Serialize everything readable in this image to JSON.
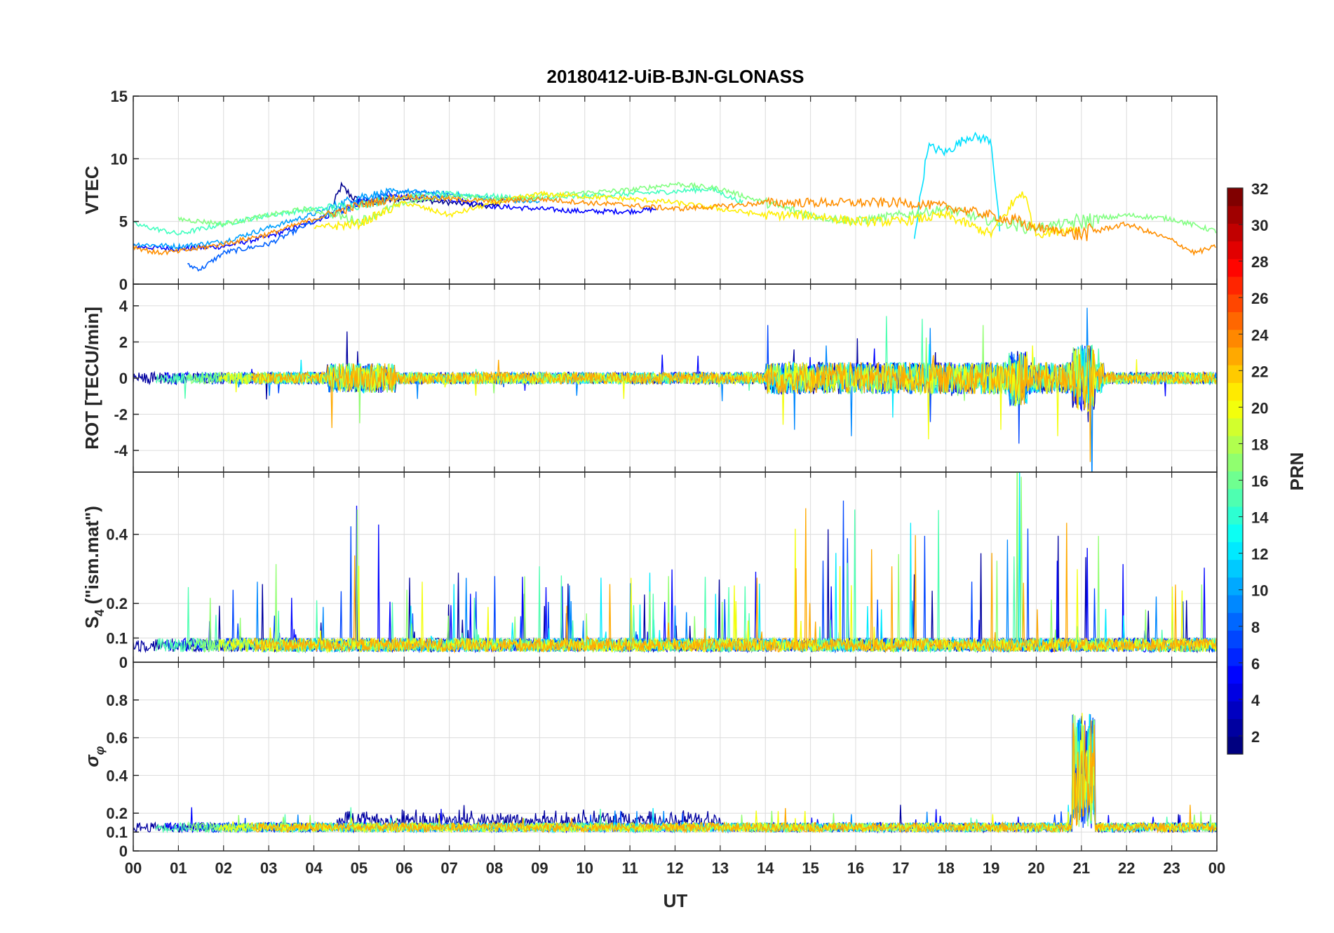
{
  "chart_data": [
    {
      "type": "line",
      "title": "20180412-UiB-BJN-GLONASS",
      "xlabel": "UT",
      "xlim": [
        0,
        24
      ],
      "x_tick_labels": [
        "00",
        "01",
        "02",
        "03",
        "04",
        "05",
        "06",
        "07",
        "08",
        "09",
        "10",
        "11",
        "12",
        "13",
        "14",
        "15",
        "16",
        "17",
        "18",
        "19",
        "20",
        "21",
        "22",
        "23",
        "00"
      ],
      "panels": [
        {
          "ylabel": "VTEC",
          "ylim": [
            0,
            15
          ],
          "yticks": [
            0,
            5,
            10,
            15
          ],
          "ytick_labels": [
            "0",
            "5",
            "10",
            "15"
          ],
          "series": [
            {
              "prn": 2,
              "color": "#00008f",
              "x": [
                4.4,
                4.6,
                5.0,
                6.0,
                7.0,
                8.0,
                8.3
              ],
              "y": [
                6.0,
                7.8,
                6.5,
                6.8,
                6.5,
                6.2,
                7.0
              ]
            },
            {
              "prn": 5,
              "color": "#0000ff",
              "x": [
                0.0,
                1.0,
                2.0,
                3.0,
                4.0,
                5.0,
                6.0,
                7.0,
                8.0,
                9.0,
                10.0,
                11.0,
                11.6
              ],
              "y": [
                3.0,
                2.8,
                3.0,
                3.8,
                5.0,
                6.5,
                7.0,
                6.8,
                6.2,
                6.0,
                5.8,
                5.8,
                6.0
              ]
            },
            {
              "prn": 7,
              "color": "#0060ff",
              "x": [
                1.2,
                1.5,
                2.0,
                3.0,
                4.0,
                5.0,
                6.0,
                7.0
              ],
              "y": [
                1.5,
                1.2,
                2.5,
                3.2,
                5.0,
                6.5,
                7.4,
                7.0
              ]
            },
            {
              "prn": 9,
              "color": "#00a0ff",
              "x": [
                0.0,
                1.0,
                2.0,
                3.0,
                4.0,
                5.0,
                6.0,
                7.0,
                8.0,
                9.0
              ],
              "y": [
                3.2,
                3.0,
                3.4,
                4.5,
                5.6,
                7.0,
                7.4,
                7.2,
                6.8,
                6.5
              ]
            },
            {
              "prn": 12,
              "color": "#00e0ff",
              "x": [
                17.3,
                17.6,
                18.0,
                18.5,
                19.0,
                19.2
              ],
              "y": [
                3.8,
                11.0,
                10.5,
                11.8,
                11.5,
                4.0
              ]
            },
            {
              "prn": 15,
              "color": "#40ffbf",
              "x": [
                0.0,
                1.0,
                2.0,
                3.0,
                4.0,
                5.0,
                6.0,
                7.0,
                8.0,
                9.0,
                10.0,
                11.0,
                12.0,
                12.8,
                13.5
              ],
              "y": [
                4.8,
                4.0,
                4.8,
                5.5,
                6.0,
                6.3,
                7.0,
                7.2,
                7.0,
                6.8,
                7.0,
                7.2,
                7.4,
                7.6,
                6.5
              ]
            },
            {
              "prn": 17,
              "color": "#80ff80",
              "x": [
                1.0,
                2.0,
                3.0,
                3.8,
                4.5,
                5.0,
                6.0,
                7.0,
                8.0,
                9.0,
                10.0,
                11.0,
                12.0,
                13.0,
                14.0,
                15.0,
                16.0,
                17.0,
                18.0,
                19.0,
                20.0,
                21.0,
                22.0,
                23.0,
                24.0
              ],
              "y": [
                5.2,
                4.8,
                5.5,
                6.0,
                5.5,
                5.0,
                6.5,
                7.0,
                6.8,
                7.0,
                7.3,
                7.5,
                8.0,
                7.6,
                6.5,
                5.5,
                5.0,
                5.5,
                6.0,
                5.0,
                4.5,
                5.0,
                5.5,
                5.2,
                4.2
              ]
            },
            {
              "prn": 20,
              "color": "#ffef00",
              "x": [
                4.0,
                5.0,
                6.0,
                7.0,
                8.0,
                9.0,
                10.0,
                11.0,
                12.0,
                13.0,
                14.0,
                15.0,
                16.0,
                17.0,
                18.0,
                19.0,
                19.7,
                20.0,
                21.0
              ],
              "y": [
                4.5,
                4.8,
                6.5,
                5.5,
                6.5,
                7.2,
                7.0,
                6.8,
                6.5,
                6.0,
                5.5,
                5.5,
                5.0,
                5.0,
                5.5,
                4.0,
                7.5,
                4.0,
                4.5
              ]
            },
            {
              "prn": 23,
              "color": "#ff8f00",
              "x": [
                0.0,
                0.5,
                1.0,
                2.0,
                3.0,
                4.0,
                5.0,
                6.0,
                7.0,
                8.0,
                9.0,
                10.0,
                11.0,
                12.0,
                13.0,
                14.0,
                15.0,
                16.0,
                17.0,
                18.0,
                19.0,
                20.0,
                21.0,
                22.0,
                23.0,
                23.5,
                24.0
              ],
              "y": [
                3.0,
                2.5,
                2.6,
                3.2,
                4.0,
                5.2,
                6.3,
                7.0,
                6.8,
                6.6,
                6.8,
                6.5,
                6.3,
                6.0,
                6.2,
                6.5,
                6.5,
                6.5,
                6.5,
                6.2,
                5.5,
                4.5,
                4.0,
                4.8,
                3.5,
                2.5,
                3.0
              ]
            }
          ]
        },
        {
          "ylabel": "ROT [TECU/min]",
          "ylim": [
            -5.2,
            5.2
          ],
          "yticks": [
            -4,
            -2,
            0,
            2,
            4
          ],
          "ytick_labels": [
            "-4",
            "-2",
            "0",
            "2",
            "4"
          ]
        },
        {
          "ylabel": "S",
          "ylabel_sub": "4",
          "ylabel_suffix": " (\"ism.mat\")",
          "ylim": [
            0.03,
            0.58
          ],
          "yticks": [
            0.1,
            0.2,
            0.4
          ],
          "ytick_labels": [
            "0.1",
            "0.2",
            "0.4"
          ]
        },
        {
          "ylabel": "σ",
          "ylabel_sub": "φ",
          "ylim": [
            0,
            1
          ],
          "yticks": [
            0,
            0.1,
            0.2,
            0.4,
            0.6,
            0.8
          ],
          "ytick_labels": [
            "0",
            "0.1",
            "0.2",
            "0.4",
            "0.6",
            "0.8"
          ],
          "top_tick_label": "0"
        }
      ],
      "colorbar": {
        "label": "PRN",
        "range": [
          1,
          32
        ],
        "tick_labels": [
          "2",
          "4",
          "6",
          "8",
          "10",
          "12",
          "14",
          "16",
          "18",
          "20",
          "22",
          "24",
          "26",
          "28",
          "30",
          "32"
        ],
        "colormap": "jet"
      },
      "grid": true
    }
  ]
}
